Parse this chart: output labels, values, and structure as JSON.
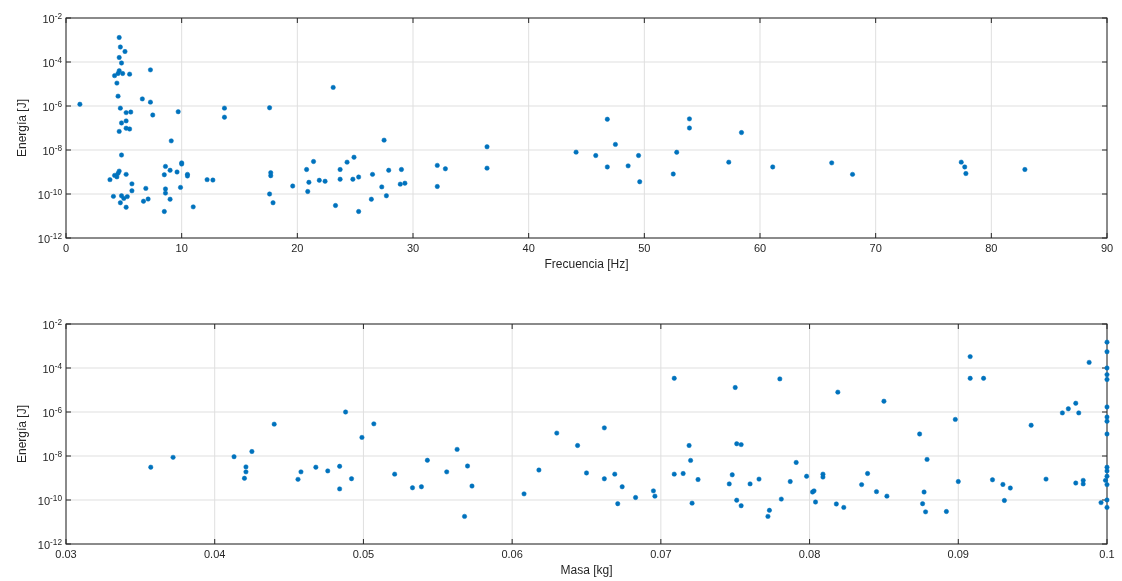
{
  "chart_data": [
    {
      "type": "scatter",
      "xlabel": "Frecuencia [Hz]",
      "ylabel": "Energía [J]",
      "log": "y",
      "grid": true,
      "marker": "circle",
      "xlim": [
        0,
        90
      ],
      "xticks": [
        0,
        10,
        20,
        30,
        40,
        50,
        60,
        70,
        80,
        90
      ],
      "ylim": [
        1e-12,
        0.01
      ],
      "yticks": [
        {
          "value": 1e-12,
          "label": "10$^{-12}$"
        },
        {
          "value": 1e-10,
          "label": "10$^{-10}$"
        },
        {
          "value": 1e-08,
          "label": "10$^{-8}$"
        },
        {
          "value": 1e-06,
          "label": "10$^{-6}$"
        },
        {
          "value": 0.0001,
          "label": "10$^{-4}$"
        },
        {
          "value": 0.01,
          "label": "10$^{-2}$"
        }
      ],
      "series": [
        {
          "color": "#0072bd",
          "x": [
            4.6,
            4.7,
            5.1,
            4.6,
            4.8,
            4.6,
            4.2,
            4.5,
            4.9,
            5.5,
            7.3,
            4.4,
            4.5,
            1.2,
            6.6,
            7.3,
            4.7,
            5.2,
            5.6,
            7.5,
            9.7,
            13.7,
            13.7,
            17.6,
            23.1,
            4.8,
            5.2,
            4.6,
            5.2,
            5.5,
            9.1,
            27.5,
            4.8,
            3.8,
            4.2,
            4.4,
            4.5,
            4.6,
            5.2,
            5.7,
            5.7,
            4.1,
            4.8,
            5.0,
            5.3,
            4.7,
            5.2,
            6.9,
            6.7,
            7.1,
            8.6,
            9.0,
            8.5,
            9.6,
            10.0,
            10.0,
            10.5,
            10.5,
            8.6,
            8.6,
            9.0,
            9.9,
            8.5,
            11.0,
            12.2,
            12.7,
            17.7,
            17.7,
            17.6,
            17.9,
            19.6,
            20.8,
            21.4,
            21.0,
            20.9,
            21.9,
            22.4,
            23.3,
            23.7,
            23.7,
            24.3,
            24.9,
            24.8,
            25.3,
            25.3,
            26.5,
            27.3,
            26.4,
            27.7,
            27.9,
            29.0,
            28.9,
            29.3,
            32.1,
            32.8,
            32.1,
            36.4,
            36.4,
            46.8,
            44.1,
            45.8,
            47.5,
            46.8,
            48.6,
            49.5,
            49.6,
            52.5,
            52.8,
            53.9,
            53.9,
            57.3,
            58.4,
            61.1,
            66.2,
            68.0,
            77.4,
            77.7,
            77.8,
            82.9
          ],
          "values": [
            0.0013,
            0.00048,
            0.0003,
            0.00016,
            9e-05,
            4e-05,
            2.4e-05,
            3e-05,
            3e-05,
            2.8e-05,
            4.4e-05,
            1.1e-05,
            2.8e-06,
            1.2e-06,
            2.1e-06,
            1.5e-06,
            8e-07,
            5e-07,
            5.3e-07,
            3.9e-07,
            5.5e-07,
            8e-07,
            3.1e-07,
            8.3e-07,
            7e-06,
            1.7e-07,
            2.1e-07,
            7e-08,
            9.8e-08,
            9e-08,
            2.6e-08,
            2.8e-08,
            5.9e-09,
            4.5e-10,
            7e-10,
            6e-10,
            8.7e-10,
            1.1e-09,
            7.8e-10,
            2.9e-10,
            1.4e-10,
            7.8e-11,
            8.3e-11,
            6.3e-11,
            7.6e-11,
            4e-11,
            2.5e-11,
            1.8e-10,
            4.7e-11,
            5.9e-11,
            1.8e-09,
            1.2e-09,
            7.5e-10,
            1e-09,
            2.6e-09,
            2.3e-09,
            7.8e-10,
            6.6e-10,
            1.7e-10,
            1.1e-10,
            5.8e-11,
            2e-10,
            1.6e-11,
            2.6e-11,
            4.5e-10,
            4.3e-10,
            9.3e-10,
            6.8e-10,
            1e-10,
            4e-11,
            2.3e-10,
            1.3e-09,
            3e-09,
            3.4e-10,
            1.3e-10,
            4.2e-10,
            3.8e-10,
            3e-11,
            1.3e-09,
            4.7e-10,
            2.8e-09,
            4.7e-09,
            4.7e-10,
            5.9e-10,
            1.6e-11,
            7.8e-10,
            2.1e-10,
            5.8e-11,
            8.3e-11,
            1.2e-09,
            1.3e-09,
            2.8e-10,
            3.1e-10,
            2e-09,
            1.4e-09,
            2.2e-10,
            1.4e-08,
            1.5e-09,
            2.5e-07,
            8e-09,
            5.6e-09,
            1.8e-08,
            1.7e-09,
            1.9e-09,
            5.6e-09,
            3.6e-10,
            8.1e-10,
            7.9e-09,
            2.6e-07,
            1e-07,
            2.8e-09,
            6.2e-08,
            1.7e-09,
            2.6e-09,
            7.8e-10,
            2.8e-09,
            1.7e-09,
            8.5e-10,
            1.3e-09
          ]
        }
      ]
    },
    {
      "type": "scatter",
      "xlabel": "Masa [kg]",
      "ylabel": "Energía [J]",
      "log": "y",
      "grid": true,
      "marker": "circle",
      "xlim": [
        0.03,
        0.1
      ],
      "xticks": [
        0.03,
        0.04,
        0.05,
        0.06,
        0.07,
        0.08,
        0.09,
        0.1
      ],
      "ylim": [
        1e-12,
        0.01
      ],
      "yticks": [
        {
          "value": 1e-12,
          "label": "10$^{-12}$"
        },
        {
          "value": 1e-10,
          "label": "10$^{-10}$"
        },
        {
          "value": 1e-08,
          "label": "10$^{-8}$"
        },
        {
          "value": 1e-06,
          "label": "10$^{-6}$"
        },
        {
          "value": 0.0001,
          "label": "10$^{-4}$"
        },
        {
          "value": 0.01,
          "label": "10$^{-2}$"
        }
      ],
      "series": [
        {
          "color": "#0072bd",
          "x": [
            0.0357,
            0.0372,
            0.0413,
            0.0421,
            0.0421,
            0.042,
            0.0425,
            0.044,
            0.0456,
            0.0458,
            0.0468,
            0.0476,
            0.0484,
            0.0484,
            0.0488,
            0.0492,
            0.0499,
            0.0507,
            0.0521,
            0.0533,
            0.0539,
            0.0543,
            0.0556,
            0.0563,
            0.057,
            0.0573,
            0.0568,
            0.0608,
            0.0618,
            0.063,
            0.0644,
            0.0662,
            0.065,
            0.0662,
            0.0669,
            0.0674,
            0.0671,
            0.0683,
            0.0695,
            0.0696,
            0.0709,
            0.0709,
            0.0715,
            0.0719,
            0.072,
            0.0725,
            0.0721,
            0.075,
            0.0751,
            0.0754,
            0.0748,
            0.0746,
            0.0751,
            0.0754,
            0.076,
            0.0766,
            0.0772,
            0.0773,
            0.078,
            0.0781,
            0.0787,
            0.0791,
            0.0798,
            0.0802,
            0.0803,
            0.0804,
            0.0809,
            0.0809,
            0.0818,
            0.0823,
            0.0819,
            0.0835,
            0.0839,
            0.0845,
            0.0852,
            0.085,
            0.0874,
            0.0879,
            0.0877,
            0.0876,
            0.0878,
            0.0892,
            0.0898,
            0.09,
            0.0908,
            0.0908,
            0.0917,
            0.0923,
            0.093,
            0.0935,
            0.0931,
            0.0949,
            0.0959,
            0.097,
            0.0974,
            0.0979,
            0.0981,
            0.0979,
            0.0984,
            0.0984,
            0.0988,
            0.0996,
            0.0999,
            0.1,
            0.1,
            0.1,
            0.1,
            0.1,
            0.1,
            0.1,
            0.1,
            0.1,
            0.1,
            0.1,
            0.1,
            0.1,
            0.1,
            0.1
          ],
          "values": [
            3.1e-09,
            8.7e-09,
            9.3e-09,
            3.2e-09,
            1.9e-09,
            9.7e-10,
            1.6e-08,
            2.8e-07,
            8.7e-10,
            1.9e-09,
            3.1e-09,
            2.1e-09,
            3.4e-09,
            3.2e-10,
            1e-06,
            9.3e-10,
            7e-08,
            2.9e-07,
            1.5e-09,
            3.6e-10,
            4e-10,
            6.4e-09,
            1.9e-09,
            2e-08,
            3.5e-09,
            4.3e-10,
            1.8e-11,
            1.9e-10,
            2.3e-09,
            1.1e-07,
            3e-08,
            1.9e-07,
            1.7e-09,
            9.2e-10,
            1.5e-09,
            4e-10,
            6.8e-11,
            1.3e-10,
            2.6e-10,
            1.5e-10,
            3.4e-05,
            1.5e-09,
            1.6e-09,
            3e-08,
            6.3e-09,
            8.5e-10,
            7.2e-11,
            1.3e-05,
            3.6e-08,
            3.3e-08,
            1.4e-09,
            5.4e-10,
            9.8e-11,
            5.5e-11,
            5.4e-10,
            8.9e-10,
            1.8e-11,
            3.4e-11,
            3.2e-05,
            1.1e-10,
            6.9e-10,
            5.1e-09,
            1.2e-09,
            2.3e-10,
            2.6e-10,
            8.1e-11,
            1.5e-09,
            1.1e-09,
            6.6e-11,
            4.6e-11,
            8e-06,
            5e-10,
            1.6e-09,
            2.4e-10,
            1.5e-10,
            3.1e-06,
            1e-07,
            7e-09,
            2.3e-10,
            6.8e-11,
            2.9e-11,
            3e-11,
            4.6e-07,
            6.9e-10,
            0.00033,
            3.4e-05,
            3.4e-05,
            8.3e-10,
            5.1e-10,
            3.5e-10,
            9.5e-11,
            2.5e-07,
            8.9e-10,
            9.1e-07,
            1.4e-06,
            2.5e-06,
            9.1e-07,
            5.9e-10,
            7.8e-10,
            5.4e-10,
            0.00018,
            7.6e-11,
            7.8e-10,
            0.0015,
            0.00055,
            0.0001,
            5e-05,
            3e-05,
            1.7e-06,
            5.9e-07,
            3.8e-07,
            1e-07,
            3.1e-09,
            2.1e-09,
            1.2e-09,
            5e-10,
            1e-10,
            4.6e-11
          ]
        }
      ]
    }
  ]
}
